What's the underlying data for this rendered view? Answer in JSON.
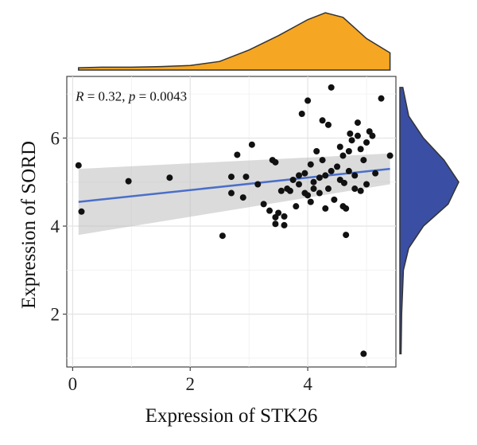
{
  "chart_data": {
    "type": "scatter",
    "title": "",
    "xlabel": "Expression of STK26",
    "ylabel": "Expression of SORD",
    "xlim": [
      -0.1,
      5.5
    ],
    "ylim": [
      0.8,
      7.4
    ],
    "x_ticks": [
      0,
      2,
      4
    ],
    "y_ticks": [
      2,
      4,
      6
    ],
    "grid": true,
    "annotation": {
      "r_symbol": "R",
      "r_value": " = 0.32, ",
      "p_symbol": "p",
      "p_value": " = 0.0043"
    },
    "regression": {
      "x": [
        0.1,
        5.4
      ],
      "y": [
        4.55,
        5.3
      ],
      "ci_low": [
        3.8,
        4.95
      ],
      "ci_high": [
        5.3,
        5.65
      ],
      "color": "#4a6fc9"
    },
    "points": [
      {
        "x": 0.1,
        "y": 5.38
      },
      {
        "x": 0.15,
        "y": 4.33
      },
      {
        "x": 0.95,
        "y": 5.02
      },
      {
        "x": 1.65,
        "y": 5.1
      },
      {
        "x": 2.55,
        "y": 3.78
      },
      {
        "x": 2.7,
        "y": 4.75
      },
      {
        "x": 2.7,
        "y": 5.12
      },
      {
        "x": 2.8,
        "y": 5.62
      },
      {
        "x": 2.9,
        "y": 4.65
      },
      {
        "x": 2.95,
        "y": 5.12
      },
      {
        "x": 3.05,
        "y": 5.85
      },
      {
        "x": 3.15,
        "y": 4.95
      },
      {
        "x": 3.25,
        "y": 4.5
      },
      {
        "x": 3.35,
        "y": 4.35
      },
      {
        "x": 3.4,
        "y": 5.5
      },
      {
        "x": 3.45,
        "y": 5.45
      },
      {
        "x": 3.45,
        "y": 4.2
      },
      {
        "x": 3.45,
        "y": 4.05
      },
      {
        "x": 3.5,
        "y": 4.3
      },
      {
        "x": 3.55,
        "y": 4.8
      },
      {
        "x": 3.6,
        "y": 4.02
      },
      {
        "x": 3.6,
        "y": 4.22
      },
      {
        "x": 3.65,
        "y": 4.85
      },
      {
        "x": 3.7,
        "y": 4.8
      },
      {
        "x": 3.75,
        "y": 5.05
      },
      {
        "x": 3.8,
        "y": 4.45
      },
      {
        "x": 3.85,
        "y": 4.95
      },
      {
        "x": 3.85,
        "y": 5.15
      },
      {
        "x": 3.9,
        "y": 6.55
      },
      {
        "x": 3.95,
        "y": 4.75
      },
      {
        "x": 3.95,
        "y": 5.2
      },
      {
        "x": 4.0,
        "y": 4.7
      },
      {
        "x": 4.0,
        "y": 6.85
      },
      {
        "x": 4.05,
        "y": 4.55
      },
      {
        "x": 4.05,
        "y": 5.4
      },
      {
        "x": 4.1,
        "y": 4.85
      },
      {
        "x": 4.1,
        "y": 5.0
      },
      {
        "x": 4.15,
        "y": 5.7
      },
      {
        "x": 4.2,
        "y": 4.75
      },
      {
        "x": 4.2,
        "y": 5.1
      },
      {
        "x": 4.25,
        "y": 5.5
      },
      {
        "x": 4.25,
        "y": 6.4
      },
      {
        "x": 4.3,
        "y": 4.4
      },
      {
        "x": 4.3,
        "y": 5.15
      },
      {
        "x": 4.35,
        "y": 4.85
      },
      {
        "x": 4.35,
        "y": 6.3
      },
      {
        "x": 4.4,
        "y": 7.15
      },
      {
        "x": 4.4,
        "y": 5.25
      },
      {
        "x": 4.45,
        "y": 4.6
      },
      {
        "x": 4.5,
        "y": 5.35
      },
      {
        "x": 4.55,
        "y": 5.8
      },
      {
        "x": 4.55,
        "y": 5.05
      },
      {
        "x": 4.6,
        "y": 4.45
      },
      {
        "x": 4.6,
        "y": 5.6
      },
      {
        "x": 4.62,
        "y": 4.98
      },
      {
        "x": 4.65,
        "y": 4.4
      },
      {
        "x": 4.65,
        "y": 3.8
      },
      {
        "x": 4.7,
        "y": 5.7
      },
      {
        "x": 4.7,
        "y": 5.25
      },
      {
        "x": 4.72,
        "y": 6.1
      },
      {
        "x": 4.75,
        "y": 5.95
      },
      {
        "x": 4.8,
        "y": 5.15
      },
      {
        "x": 4.8,
        "y": 4.85
      },
      {
        "x": 4.85,
        "y": 6.35
      },
      {
        "x": 4.85,
        "y": 6.05
      },
      {
        "x": 4.9,
        "y": 5.75
      },
      {
        "x": 4.9,
        "y": 4.8
      },
      {
        "x": 4.95,
        "y": 5.5
      },
      {
        "x": 4.95,
        "y": 1.1
      },
      {
        "x": 5.0,
        "y": 5.9
      },
      {
        "x": 5.0,
        "y": 4.95
      },
      {
        "x": 5.05,
        "y": 6.15
      },
      {
        "x": 5.1,
        "y": 6.05
      },
      {
        "x": 5.15,
        "y": 5.2
      },
      {
        "x": 5.25,
        "y": 6.9
      },
      {
        "x": 5.4,
        "y": 5.6
      }
    ],
    "marginal_x": {
      "color": "#f5a623",
      "x": [
        0.1,
        0.5,
        1.0,
        1.5,
        2.0,
        2.5,
        3.0,
        3.5,
        4.0,
        4.3,
        4.6,
        5.0,
        5.4
      ],
      "density": [
        0.04,
        0.05,
        0.05,
        0.06,
        0.08,
        0.15,
        0.35,
        0.6,
        0.88,
        1.0,
        0.92,
        0.55,
        0.3
      ]
    },
    "marginal_y": {
      "color": "#3a4fa3",
      "y": [
        1.1,
        2.0,
        3.0,
        3.5,
        4.0,
        4.5,
        5.0,
        5.5,
        6.0,
        6.5,
        7.15
      ],
      "density": [
        0.02,
        0.03,
        0.06,
        0.15,
        0.4,
        0.82,
        1.0,
        0.75,
        0.4,
        0.15,
        0.05
      ]
    }
  }
}
